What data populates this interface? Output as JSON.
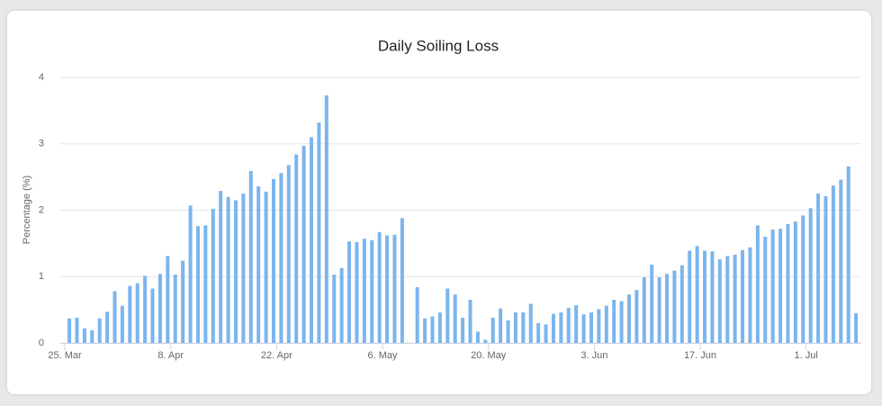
{
  "chart_data": {
    "type": "bar",
    "title": "Daily Soiling Loss",
    "y_label": "Percentage (%)",
    "categories": [
      "25. Mar",
      null,
      null,
      null,
      null,
      null,
      null,
      null,
      null,
      null,
      null,
      null,
      null,
      null,
      "8. Apr",
      null,
      null,
      null,
      null,
      null,
      null,
      null,
      null,
      null,
      null,
      null,
      null,
      null,
      "22. Apr",
      null,
      null,
      null,
      null,
      null,
      null,
      null,
      null,
      null,
      null,
      null,
      null,
      null,
      "6. May",
      null,
      null,
      null,
      null,
      null,
      null,
      null,
      null,
      null,
      null,
      null,
      null,
      null,
      "20. May",
      null,
      null,
      null,
      null,
      null,
      null,
      null,
      null,
      null,
      null,
      null,
      null,
      null,
      "3. Jun",
      null,
      null,
      null,
      null,
      null,
      null,
      null,
      null,
      null,
      null,
      null,
      null,
      null,
      "17. Jun",
      null,
      null,
      null,
      null,
      null,
      null,
      null,
      null,
      null,
      null,
      null,
      null,
      null,
      "1. Jul",
      null,
      null,
      null,
      null,
      null,
      null
    ],
    "values": [
      0.37,
      0.38,
      0.22,
      0.19,
      0.37,
      0.47,
      0.78,
      0.56,
      0.86,
      0.9,
      1.01,
      0.82,
      1.04,
      1.31,
      1.03,
      1.24,
      2.07,
      1.76,
      1.77,
      2.02,
      2.29,
      2.2,
      2.15,
      2.25,
      2.59,
      2.36,
      2.28,
      2.47,
      2.56,
      2.68,
      2.84,
      2.97,
      3.1,
      3.32,
      3.73,
      1.03,
      1.13,
      1.53,
      1.52,
      1.57,
      1.55,
      1.67,
      1.62,
      1.63,
      1.88,
      null,
      0.84,
      0.37,
      0.4,
      0.46,
      0.82,
      0.73,
      0.38,
      0.65,
      0.17,
      0.05,
      0.38,
      0.52,
      0.34,
      0.46,
      0.46,
      0.59,
      0.3,
      0.28,
      0.44,
      0.46,
      0.53,
      0.57,
      0.43,
      0.46,
      0.51,
      0.56,
      0.65,
      0.63,
      0.73,
      0.8,
      0.99,
      1.18,
      0.99,
      1.04,
      1.09,
      1.17,
      1.39,
      1.46,
      1.39,
      1.38,
      1.26,
      1.31,
      1.33,
      1.4,
      1.44,
      1.77,
      1.6,
      1.71,
      1.72,
      1.79,
      1.83,
      1.92,
      2.03,
      2.25,
      2.21,
      2.37,
      2.46,
      2.66,
      0.45
    ],
    "color": "#7cb5ec",
    "ylim": [
      0,
      4
    ],
    "yticks": [
      0,
      1,
      2,
      3,
      4
    ],
    "grid": true
  }
}
